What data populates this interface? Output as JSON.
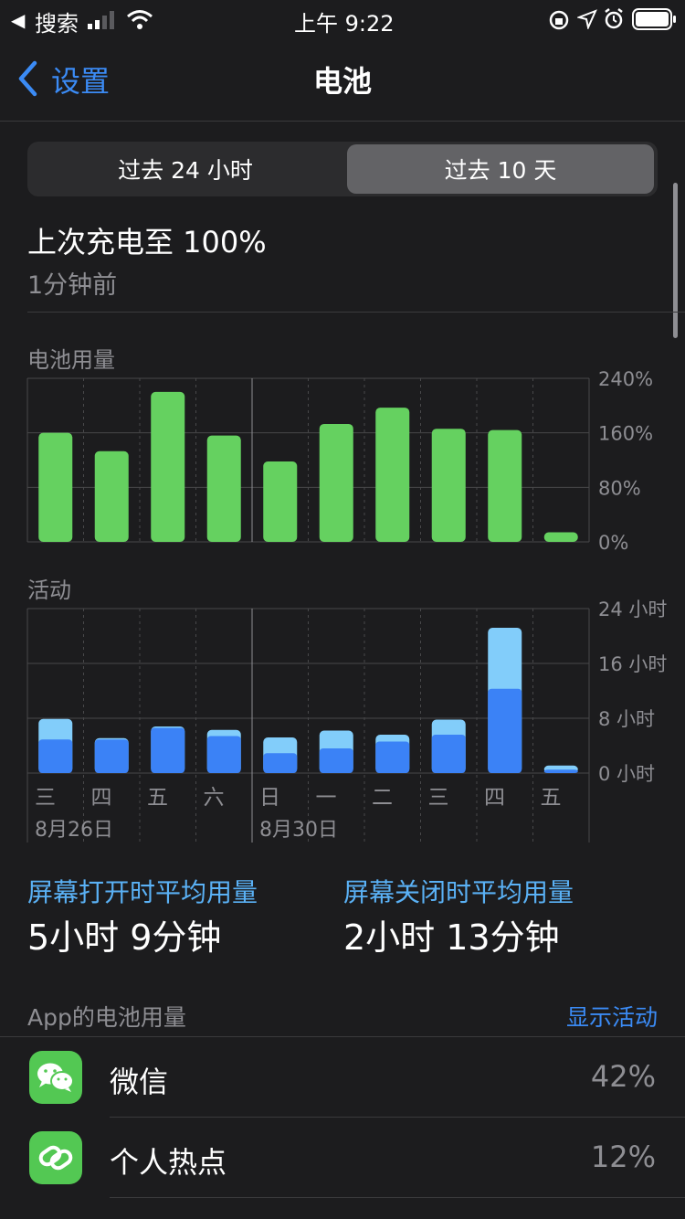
{
  "status_bar": {
    "back_app": "搜索",
    "time": "上午 9:22"
  },
  "nav": {
    "back_label": "设置",
    "title": "电池"
  },
  "segment": {
    "tabs": [
      "过去 24 小时",
      "过去 10 天"
    ],
    "selected": "过去 10 天"
  },
  "last_charge": {
    "title": "上次充电至 100%",
    "subtitle": "1分钟前"
  },
  "colors": {
    "green": "#65d160",
    "blue_dark": "#3b82f6",
    "blue_light": "#82cdfa",
    "link": "#5ab1f5",
    "grid": "#48484a"
  },
  "chart_data": [
    {
      "type": "bar",
      "title": "电池用量",
      "categories": [
        "三",
        "四",
        "五",
        "六",
        "日",
        "一",
        "二",
        "三",
        "四",
        "五"
      ],
      "values": [
        160,
        133,
        220,
        156,
        118,
        173,
        197,
        166,
        164,
        14
      ],
      "ylim": [
        0,
        240
      ],
      "ytick_labels": [
        "240%",
        "160%",
        "80%",
        "0%"
      ],
      "yticks": [
        240,
        160,
        80,
        0
      ],
      "grid": true
    },
    {
      "type": "bar",
      "title": "活动",
      "categories": [
        "三",
        "四",
        "五",
        "六",
        "日",
        "一",
        "二",
        "三",
        "四",
        "五"
      ],
      "x_date_labels": [
        "8月26日",
        "8月30日"
      ],
      "series": [
        {
          "name": "屏幕打开",
          "values": [
            4.9,
            4.9,
            6.6,
            5.4,
            2.9,
            3.6,
            4.6,
            5.6,
            12.3,
            0.5
          ]
        },
        {
          "name": "屏幕关闭",
          "values": [
            3.0,
            0.2,
            0.2,
            0.9,
            2.3,
            2.6,
            1.0,
            2.2,
            8.9,
            0.6
          ]
        }
      ],
      "ylim": [
        0,
        24
      ],
      "ytick_labels": [
        "24 小时",
        "16 小时",
        "8 小时",
        "0 小时"
      ],
      "yticks": [
        24,
        16,
        8,
        0
      ],
      "grid": true
    }
  ],
  "averages": {
    "screen_on_label": "屏幕打开时平均用量",
    "screen_on_value": "5小时 9分钟",
    "screen_off_label": "屏幕关闭时平均用量",
    "screen_off_value": "2小时 13分钟"
  },
  "app_usage": {
    "header": "App的电池用量",
    "show_activity": "显示活动",
    "apps": [
      {
        "name": "微信",
        "percent": "42%",
        "icon": "wechat-icon"
      },
      {
        "name": "个人热点",
        "percent": "12%",
        "icon": "hotspot-icon"
      }
    ]
  }
}
